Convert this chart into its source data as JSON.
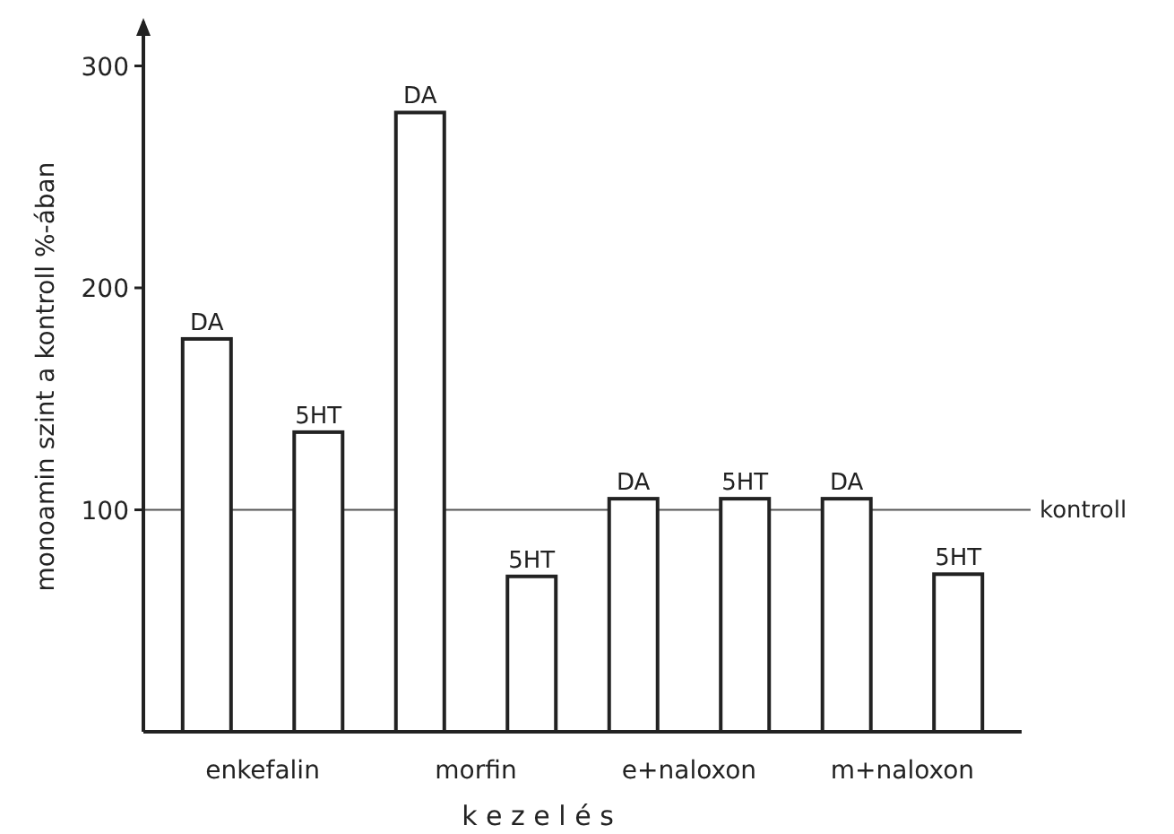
{
  "chart_data": {
    "type": "bar",
    "xlabel": "k e z e l é s",
    "ylabel": "monoamin szint a kontroll %-ában",
    "categories": [
      "enkefalin",
      "morfin",
      "e+naloxon",
      "m+naloxon"
    ],
    "series": [
      {
        "name": "DA",
        "color": "#ffffff",
        "values": [
          177,
          279,
          105,
          105
        ]
      },
      {
        "name": "5HT",
        "color": "#ffffff",
        "values": [
          135,
          70,
          105,
          71
        ]
      }
    ],
    "ylim": [
      0,
      320
    ],
    "yticks": [
      100,
      200,
      300
    ],
    "grid": false,
    "ref_lines": [
      {
        "axis": "y",
        "value": 100,
        "label": "kontroll"
      }
    ]
  }
}
